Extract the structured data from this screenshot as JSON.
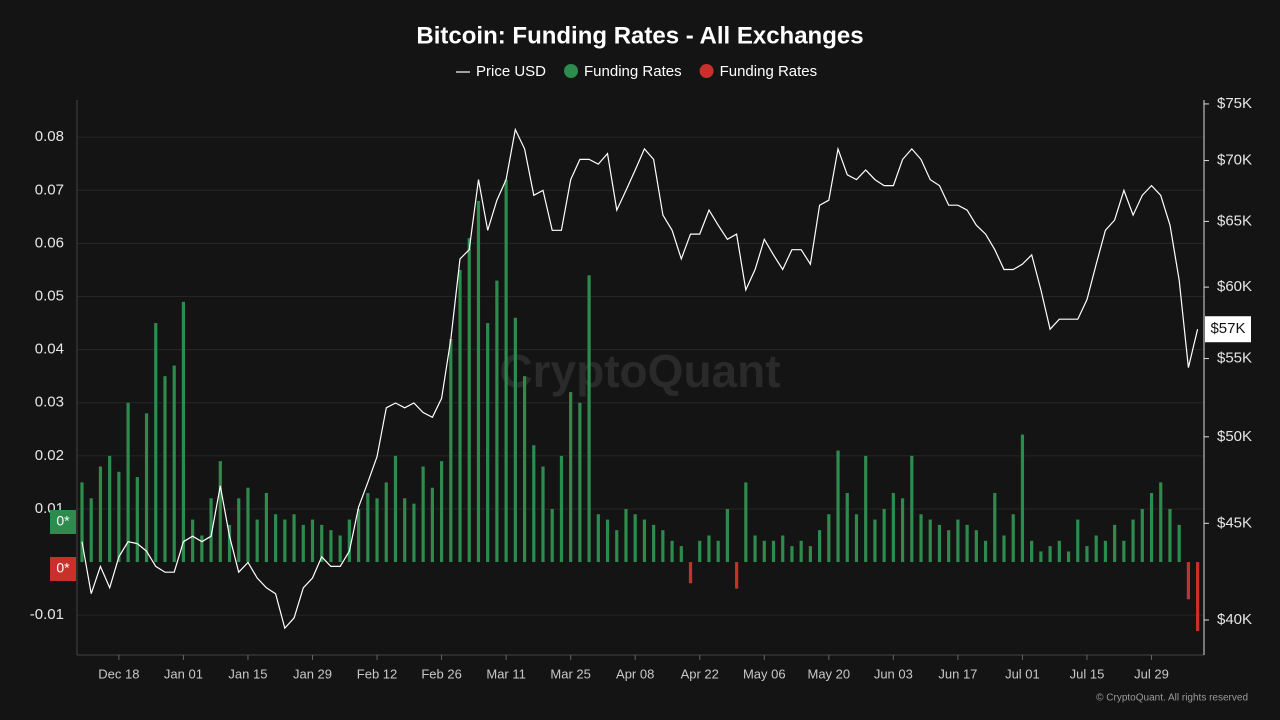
{
  "chart_data": {
    "type": "bar-line",
    "title": "Bitcoin: Funding Rates - All Exchanges",
    "watermark": "CryptoQuant",
    "copyright": "© CryptoQuant. All rights reserved",
    "badges": [
      {
        "label": "0*",
        "color": "#2e8b4e"
      },
      {
        "label": "0*",
        "color": "#c9302c"
      }
    ],
    "price_marker": {
      "value": 57000,
      "label": "$57K"
    },
    "categories": [
      null,
      null,
      null,
      null,
      "Dec 18",
      null,
      null,
      null,
      null,
      null,
      null,
      "Jan 01",
      null,
      null,
      null,
      null,
      null,
      null,
      "Jan 15",
      null,
      null,
      null,
      null,
      null,
      null,
      "Jan 29",
      null,
      null,
      null,
      null,
      null,
      null,
      "Feb 12",
      null,
      null,
      null,
      null,
      null,
      null,
      "Feb 26",
      null,
      null,
      null,
      null,
      null,
      null,
      "Mar 11",
      null,
      null,
      null,
      null,
      null,
      null,
      "Mar 25",
      null,
      null,
      null,
      null,
      null,
      null,
      "Apr 08",
      null,
      null,
      null,
      null,
      null,
      null,
      "Apr 22",
      null,
      null,
      null,
      null,
      null,
      null,
      "May 06",
      null,
      null,
      null,
      null,
      null,
      null,
      "May 20",
      null,
      null,
      null,
      null,
      null,
      null,
      "Jun 03",
      null,
      null,
      null,
      null,
      null,
      null,
      "Jun 17",
      null,
      null,
      null,
      null,
      null,
      null,
      "Jul 01",
      null,
      null,
      null,
      null,
      null,
      null,
      "Jul 15",
      null,
      null,
      null,
      null,
      null,
      null,
      "Jul 29",
      null,
      null,
      null,
      null,
      null
    ],
    "series": [
      {
        "name": "Price USD",
        "color": "#ffffff",
        "kind": "line",
        "axis": "y2",
        "values": [
          44000,
          41300,
          42700,
          41600,
          43200,
          44000,
          43900,
          43500,
          42700,
          42400,
          42400,
          44000,
          44300,
          44000,
          44300,
          47100,
          44300,
          42400,
          42900,
          42100,
          41600,
          41300,
          39600,
          40100,
          41600,
          42100,
          43200,
          42700,
          42700,
          43500,
          45900,
          47300,
          48800,
          51800,
          52100,
          51800,
          52100,
          51500,
          51200,
          52400,
          56300,
          62100,
          62800,
          68400,
          64300,
          66700,
          68400,
          72700,
          71000,
          67100,
          67500,
          64300,
          64300,
          68400,
          70100,
          70100,
          69700,
          70600,
          65900,
          67500,
          69200,
          71000,
          70100,
          65500,
          64300,
          62100,
          64000,
          64000,
          65900,
          64700,
          63600,
          64000,
          59800,
          61300,
          63600,
          62400,
          61300,
          62800,
          62800,
          61700,
          66300,
          66700,
          71000,
          68800,
          68400,
          69200,
          68400,
          67900,
          67900,
          70100,
          71000,
          70100,
          68400,
          67900,
          66300,
          66300,
          65900,
          64700,
          64000,
          62800,
          61300,
          61300,
          61700,
          62400,
          59800,
          57000,
          57700,
          57700,
          57700,
          59100,
          61700,
          64300,
          65100,
          67500,
          65500,
          67100,
          67900,
          67100,
          64700,
          60500,
          54400,
          57000
        ]
      },
      {
        "name": "Funding Rates",
        "color": "#2e8b4e",
        "kind": "bar",
        "values": [
          0.015,
          0.012,
          0.018,
          0.02,
          0.017,
          0.03,
          0.016,
          0.028,
          0.045,
          0.035,
          0.037,
          0.049,
          0.008,
          0.005,
          0.012,
          0.019,
          0.007,
          0.012,
          0.014,
          0.008,
          0.013,
          0.009,
          0.008,
          0.009,
          0.007,
          0.008,
          0.007,
          0.006,
          0.005,
          0.008,
          0.01,
          0.013,
          0.012,
          0.015,
          0.02,
          0.012,
          0.011,
          0.018,
          0.014,
          0.019,
          0.042,
          0.055,
          0.061,
          0.068,
          0.045,
          0.053,
          0.072,
          0.046,
          0.035,
          0.022,
          0.018,
          0.01,
          0.02,
          0.032,
          0.03,
          0.054,
          0.009,
          0.008,
          0.006,
          0.01,
          0.009,
          0.008,
          0.007,
          0.006,
          0.004,
          0.003,
          null,
          0.004,
          0.005,
          0.004,
          0.01,
          null,
          0.015,
          0.005,
          0.004,
          0.004,
          0.005,
          0.003,
          0.004,
          0.003,
          0.006,
          0.009,
          0.021,
          0.013,
          0.009,
          0.02,
          0.008,
          0.01,
          0.013,
          0.012,
          0.02,
          0.009,
          0.008,
          0.007,
          0.006,
          0.008,
          0.007,
          0.006,
          0.004,
          0.013,
          0.005,
          0.009,
          0.024,
          0.004,
          0.002,
          0.003,
          0.004,
          0.002,
          0.008,
          0.003,
          0.005,
          0.004,
          0.007,
          0.004,
          0.008,
          0.01,
          0.013,
          0.015,
          0.01,
          0.007,
          null,
          null
        ]
      },
      {
        "name": "Funding Rates",
        "color": "#c9302c",
        "kind": "bar",
        "values": [
          null,
          null,
          null,
          null,
          null,
          null,
          null,
          null,
          null,
          null,
          null,
          null,
          null,
          null,
          null,
          null,
          null,
          null,
          null,
          null,
          null,
          null,
          null,
          null,
          null,
          null,
          null,
          null,
          null,
          null,
          null,
          null,
          null,
          null,
          null,
          null,
          null,
          null,
          null,
          null,
          null,
          null,
          null,
          null,
          null,
          null,
          null,
          null,
          null,
          null,
          null,
          null,
          null,
          null,
          null,
          null,
          null,
          null,
          null,
          null,
          null,
          null,
          null,
          null,
          null,
          null,
          -0.004,
          null,
          null,
          null,
          null,
          -0.005,
          null,
          null,
          null,
          null,
          null,
          null,
          null,
          null,
          null,
          null,
          null,
          null,
          null,
          null,
          null,
          null,
          null,
          null,
          null,
          null,
          null,
          null,
          null,
          null,
          null,
          null,
          null,
          null,
          null,
          null,
          null,
          null,
          null,
          null,
          null,
          null,
          null,
          null,
          null,
          null,
          null,
          null,
          null,
          null,
          null,
          null,
          null,
          null,
          -0.007,
          -0.013
        ]
      }
    ],
    "ylim": [
      -0.0175,
      0.087
    ],
    "yticks": [
      -0.01,
      0.01,
      0.02,
      0.03,
      0.04,
      0.05,
      0.06,
      0.07,
      0.08
    ],
    "y2lim": [
      38330,
      75360
    ],
    "y2scale": "log",
    "y2ticks": [
      {
        "value": 40000,
        "label": "$40K"
      },
      {
        "value": 45000,
        "label": "$45K"
      },
      {
        "value": 50000,
        "label": "$50K"
      },
      {
        "value": 55000,
        "label": "$55K"
      },
      {
        "value": 60000,
        "label": "$60K"
      },
      {
        "value": 65000,
        "label": "$65K"
      },
      {
        "value": 70000,
        "label": "$70K"
      },
      {
        "value": 75000,
        "label": "$75K"
      }
    ],
    "grid": true
  }
}
